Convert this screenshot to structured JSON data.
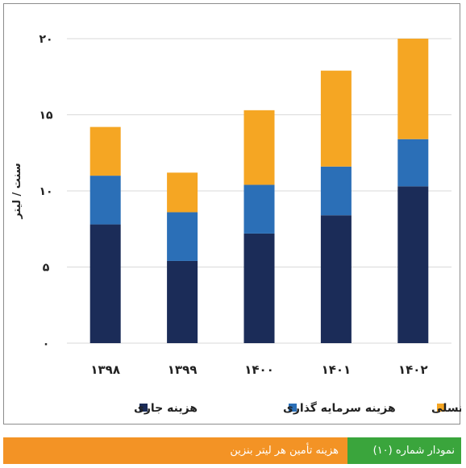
{
  "chart_data": {
    "type": "bar",
    "stacked": true,
    "categories": [
      "۱۳۹۸",
      "۱۳۹۹",
      "۱۴۰۰",
      "۱۴۰۱",
      "۱۴۰۲"
    ],
    "series": [
      {
        "name": "هزینه جاری",
        "color": "#1b2c58",
        "values": [
          7.8,
          5.4,
          7.2,
          8.4,
          10.3
        ]
      },
      {
        "name": "هزینه سرمایه گذاری",
        "color": "#2b6fb7",
        "values": [
          3.2,
          3.2,
          3.2,
          3.2,
          3.1
        ]
      },
      {
        "name": "سهم بین نسلی",
        "color": "#f5a623",
        "values": [
          3.2,
          2.6,
          4.9,
          6.3,
          6.6
        ]
      }
    ],
    "ylabel": "سنت / لیتر",
    "ylim": [
      0,
      20
    ],
    "yticks": [
      0,
      5,
      10,
      15,
      20
    ],
    "ytick_labels": [
      "۰",
      "۵",
      "۱۰",
      "۱۵",
      "۲۰"
    ],
    "grid": true,
    "legend_position": "bottom"
  },
  "caption": {
    "label": "نمودار شماره (۱۰)",
    "title": "هزینه تأمین هر لیتر بنزین",
    "label_color": "#3aa53c",
    "bar_color": "#f39325"
  }
}
